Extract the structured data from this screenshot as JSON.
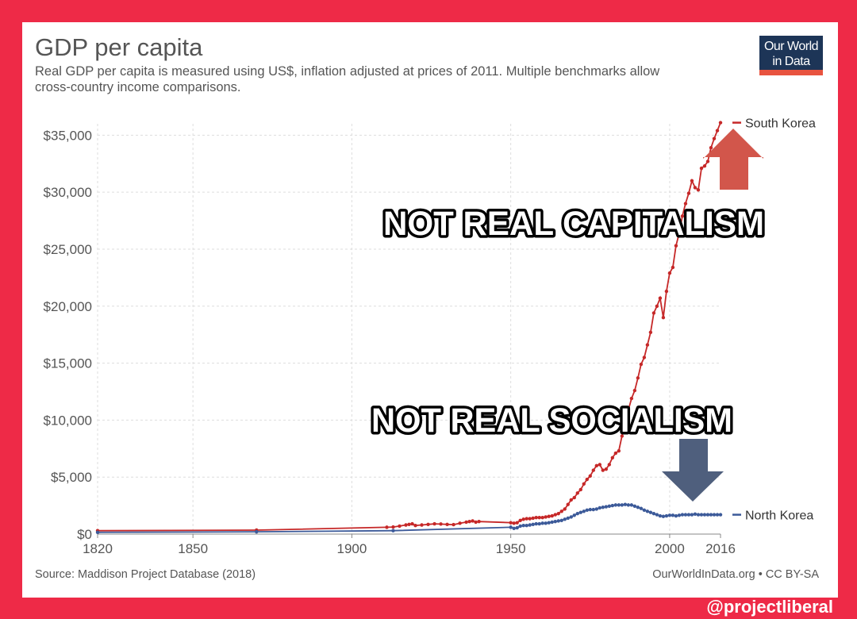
{
  "header": {
    "title": "GDP per capita",
    "subtitle_line1": "Real GDP per capita is measured using US$, inflation adjusted at prices of 2011. Multiple benchmarks allow",
    "subtitle_line2": "cross-country income comparisons.",
    "logo_line1": "Our World",
    "logo_line2": "in Data"
  },
  "footer": {
    "source": "Source: Maddison Project Database (2018)",
    "license": "OurWorldInData.org • CC BY-SA"
  },
  "watermark": "@projectliberal",
  "annotations": {
    "capitalism": "NOT REAL CAPITALISM",
    "socialism": "NOT REAL SOCIALISM"
  },
  "colors": {
    "south_korea": "#c62828",
    "north_korea": "#3c5a99",
    "up_arrow": "#d2564b",
    "down_arrow": "#4f5f7d",
    "frame": "#ee2a47"
  },
  "chart_data": {
    "type": "line",
    "title": "GDP per capita",
    "xlabel": "",
    "ylabel": "",
    "xlim": [
      1820,
      2016
    ],
    "ylim": [
      0,
      36000
    ],
    "x_ticks": [
      1820,
      1850,
      1900,
      1950,
      2000,
      2016
    ],
    "x_tick_labels": [
      "1820",
      "1850",
      "1900",
      "1950",
      "2000",
      "2016"
    ],
    "y_ticks": [
      0,
      5000,
      10000,
      15000,
      20000,
      25000,
      30000,
      35000
    ],
    "y_tick_labels": [
      "$0",
      "$5,000",
      "$10,000",
      "$15,000",
      "$20,000",
      "$25,000",
      "$30,000",
      "$35,000"
    ],
    "series": [
      {
        "name": "South Korea",
        "legend_label": "South Korea",
        "points": [
          [
            1820,
            300
          ],
          [
            1870,
            350
          ],
          [
            1911,
            600
          ],
          [
            1913,
            620
          ],
          [
            1915,
            700
          ],
          [
            1917,
            800
          ],
          [
            1918,
            850
          ],
          [
            1919,
            900
          ],
          [
            1920,
            750
          ],
          [
            1922,
            800
          ],
          [
            1924,
            850
          ],
          [
            1926,
            900
          ],
          [
            1928,
            880
          ],
          [
            1930,
            850
          ],
          [
            1932,
            830
          ],
          [
            1934,
            950
          ],
          [
            1936,
            1050
          ],
          [
            1937,
            1100
          ],
          [
            1938,
            1150
          ],
          [
            1939,
            1050
          ],
          [
            1940,
            1100
          ],
          [
            1950,
            1000
          ],
          [
            1951,
            950
          ],
          [
            1952,
            1000
          ],
          [
            1953,
            1200
          ],
          [
            1954,
            1300
          ],
          [
            1955,
            1350
          ],
          [
            1956,
            1350
          ],
          [
            1957,
            1400
          ],
          [
            1958,
            1450
          ],
          [
            1959,
            1450
          ],
          [
            1960,
            1450
          ],
          [
            1961,
            1500
          ],
          [
            1962,
            1550
          ],
          [
            1963,
            1600
          ],
          [
            1964,
            1700
          ],
          [
            1965,
            1800
          ],
          [
            1966,
            2000
          ],
          [
            1967,
            2200
          ],
          [
            1968,
            2600
          ],
          [
            1969,
            3000
          ],
          [
            1970,
            3200
          ],
          [
            1971,
            3600
          ],
          [
            1972,
            3900
          ],
          [
            1973,
            4400
          ],
          [
            1974,
            4800
          ],
          [
            1975,
            5100
          ],
          [
            1976,
            5600
          ],
          [
            1977,
            6000
          ],
          [
            1978,
            6100
          ],
          [
            1979,
            5600
          ],
          [
            1980,
            5700
          ],
          [
            1981,
            6100
          ],
          [
            1982,
            6700
          ],
          [
            1983,
            7100
          ],
          [
            1984,
            7300
          ],
          [
            1985,
            8600
          ],
          [
            1986,
            9800
          ],
          [
            1987,
            10900
          ],
          [
            1988,
            11900
          ],
          [
            1989,
            12600
          ],
          [
            1990,
            13700
          ],
          [
            1991,
            14900
          ],
          [
            1992,
            15500
          ],
          [
            1993,
            16600
          ],
          [
            1994,
            17700
          ],
          [
            1995,
            19400
          ],
          [
            1996,
            20000
          ],
          [
            1997,
            20700
          ],
          [
            1998,
            19000
          ],
          [
            1999,
            21300
          ],
          [
            2000,
            22900
          ],
          [
            2001,
            23400
          ],
          [
            2002,
            25300
          ],
          [
            2003,
            26400
          ],
          [
            2004,
            27900
          ],
          [
            2005,
            29000
          ],
          [
            2006,
            29900
          ],
          [
            2007,
            31000
          ],
          [
            2008,
            30400
          ],
          [
            2009,
            30200
          ],
          [
            2010,
            32100
          ],
          [
            2011,
            32300
          ],
          [
            2012,
            32700
          ],
          [
            2013,
            33900
          ],
          [
            2014,
            34700
          ],
          [
            2015,
            35400
          ],
          [
            2016,
            36100
          ]
        ]
      },
      {
        "name": "North Korea",
        "legend_label": "North Korea",
        "points": [
          [
            1820,
            150
          ],
          [
            1870,
            200
          ],
          [
            1913,
            300
          ],
          [
            1950,
            600
          ],
          [
            1951,
            500
          ],
          [
            1952,
            550
          ],
          [
            1953,
            700
          ],
          [
            1954,
            750
          ],
          [
            1955,
            750
          ],
          [
            1956,
            800
          ],
          [
            1957,
            850
          ],
          [
            1958,
            900
          ],
          [
            1959,
            900
          ],
          [
            1960,
            950
          ],
          [
            1961,
            950
          ],
          [
            1962,
            1000
          ],
          [
            1963,
            1050
          ],
          [
            1964,
            1100
          ],
          [
            1965,
            1150
          ],
          [
            1966,
            1200
          ],
          [
            1967,
            1300
          ],
          [
            1968,
            1400
          ],
          [
            1969,
            1500
          ],
          [
            1970,
            1650
          ],
          [
            1971,
            1800
          ],
          [
            1972,
            1900
          ],
          [
            1973,
            2000
          ],
          [
            1974,
            2100
          ],
          [
            1975,
            2150
          ],
          [
            1976,
            2150
          ],
          [
            1977,
            2200
          ],
          [
            1978,
            2300
          ],
          [
            1979,
            2350
          ],
          [
            1980,
            2400
          ],
          [
            1981,
            2450
          ],
          [
            1982,
            2500
          ],
          [
            1983,
            2550
          ],
          [
            1984,
            2550
          ],
          [
            1985,
            2550
          ],
          [
            1986,
            2600
          ],
          [
            1987,
            2550
          ],
          [
            1988,
            2550
          ],
          [
            1989,
            2450
          ],
          [
            1990,
            2350
          ],
          [
            1991,
            2250
          ],
          [
            1992,
            2100
          ],
          [
            1993,
            2000
          ],
          [
            1994,
            1900
          ],
          [
            1995,
            1800
          ],
          [
            1996,
            1700
          ],
          [
            1997,
            1600
          ],
          [
            1998,
            1550
          ],
          [
            1999,
            1600
          ],
          [
            2000,
            1650
          ],
          [
            2001,
            1650
          ],
          [
            2002,
            1600
          ],
          [
            2003,
            1650
          ],
          [
            2004,
            1700
          ],
          [
            2005,
            1700
          ],
          [
            2006,
            1700
          ],
          [
            2007,
            1700
          ],
          [
            2008,
            1750
          ],
          [
            2009,
            1700
          ],
          [
            2010,
            1700
          ],
          [
            2011,
            1700
          ],
          [
            2012,
            1700
          ],
          [
            2013,
            1700
          ],
          [
            2014,
            1700
          ],
          [
            2015,
            1700
          ],
          [
            2016,
            1700
          ]
        ]
      }
    ]
  }
}
